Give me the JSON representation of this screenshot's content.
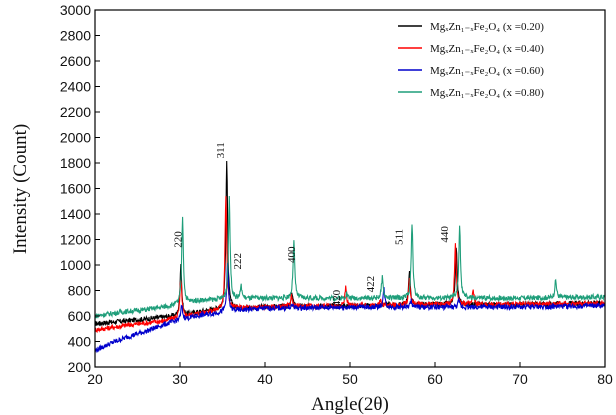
{
  "chart_data": {
    "type": "line",
    "xlabel": "Angle(2θ)",
    "ylabel": "Intensity (Count)",
    "xlim": [
      20,
      80
    ],
    "ylim": [
      200,
      3000
    ],
    "x_ticks": [
      "20",
      "30",
      "40",
      "50",
      "60",
      "70",
      "80"
    ],
    "y_ticks": [
      "200",
      "400",
      "600",
      "800",
      "1000",
      "1200",
      "1400",
      "1600",
      "1800",
      "2000",
      "2200",
      "2400",
      "2600",
      "2800",
      "3000"
    ],
    "legend_position": "top-right",
    "series": [
      {
        "name": "MgₓZn₁₋ₓFe₂O₄ (x =0.20)",
        "color": "#000000",
        "baseline": [
          [
            20,
            540
          ],
          [
            25,
            570
          ],
          [
            28,
            590
          ],
          [
            30,
            600
          ],
          [
            33,
            640
          ],
          [
            36,
            660
          ],
          [
            40,
            670
          ],
          [
            50,
            680
          ],
          [
            60,
            690
          ],
          [
            70,
            690
          ],
          [
            80,
            700
          ]
        ],
        "peaks": [
          [
            30.1,
            1010
          ],
          [
            35.5,
            1820
          ],
          [
            43.2,
            780
          ],
          [
            53.8,
            700
          ],
          [
            57.0,
            970
          ],
          [
            62.5,
            1150
          ]
        ]
      },
      {
        "name": "MgₓZn₁₋ₓFe₂O₄ (x =0.40)",
        "color": "#ff0000",
        "baseline": [
          [
            20,
            490
          ],
          [
            24,
            530
          ],
          [
            28,
            560
          ],
          [
            30,
            590
          ],
          [
            33,
            630
          ],
          [
            36,
            660
          ],
          [
            40,
            670
          ],
          [
            50,
            680
          ],
          [
            60,
            690
          ],
          [
            70,
            690
          ],
          [
            80,
            700
          ]
        ],
        "peaks": [
          [
            30.1,
            900
          ],
          [
            35.4,
            1550
          ],
          [
            43.1,
            760
          ],
          [
            49.5,
            830
          ],
          [
            53.6,
            720
          ],
          [
            57.0,
            900
          ],
          [
            62.4,
            1160
          ],
          [
            64.5,
            800
          ]
        ]
      },
      {
        "name": "MgₓZn₁₋ₓFe₂O₄ (x =0.60)",
        "color": "#0000cc",
        "baseline": [
          [
            20,
            330
          ],
          [
            22,
            390
          ],
          [
            24,
            440
          ],
          [
            26,
            480
          ],
          [
            28,
            530
          ],
          [
            30,
            570
          ],
          [
            32,
            600
          ],
          [
            34,
            620
          ],
          [
            36,
            640
          ],
          [
            40,
            660
          ],
          [
            50,
            670
          ],
          [
            60,
            670
          ],
          [
            70,
            670
          ],
          [
            80,
            680
          ]
        ],
        "peaks": [
          [
            30.2,
            680
          ],
          [
            35.6,
            1000
          ],
          [
            43.3,
            690
          ],
          [
            54.0,
            810
          ],
          [
            57.2,
            720
          ],
          [
            62.8,
            720
          ]
        ]
      },
      {
        "name": "MgₓZn₁₋ₓFe₂O₄ (x =0.80)",
        "color": "#1f9e7a",
        "baseline": [
          [
            20,
            600
          ],
          [
            23,
            630
          ],
          [
            26,
            650
          ],
          [
            28,
            670
          ],
          [
            30,
            690
          ],
          [
            32,
            720
          ],
          [
            35,
            730
          ],
          [
            40,
            740
          ],
          [
            50,
            740
          ],
          [
            60,
            740
          ],
          [
            70,
            740
          ],
          [
            80,
            750
          ]
        ],
        "peaks": [
          [
            30.3,
            1370
          ],
          [
            35.8,
            1520
          ],
          [
            37.2,
            830
          ],
          [
            43.4,
            1180
          ],
          [
            49.6,
            780
          ],
          [
            53.8,
            900
          ],
          [
            57.3,
            1320
          ],
          [
            62.9,
            1290
          ],
          [
            74.2,
            880
          ]
        ]
      }
    ],
    "annotations": [
      {
        "text": "220",
        "x": 30.2,
        "y": 1200
      },
      {
        "text": "311",
        "x": 35.2,
        "y": 1900
      },
      {
        "text": "222",
        "x": 37.2,
        "y": 1030
      },
      {
        "text": "400",
        "x": 43.5,
        "y": 1080
      },
      {
        "text": "420",
        "x": 48.8,
        "y": 740
      },
      {
        "text": "422",
        "x": 52.8,
        "y": 850
      },
      {
        "text": "511",
        "x": 56.2,
        "y": 1220
      },
      {
        "text": "440",
        "x": 61.5,
        "y": 1240
      }
    ]
  }
}
